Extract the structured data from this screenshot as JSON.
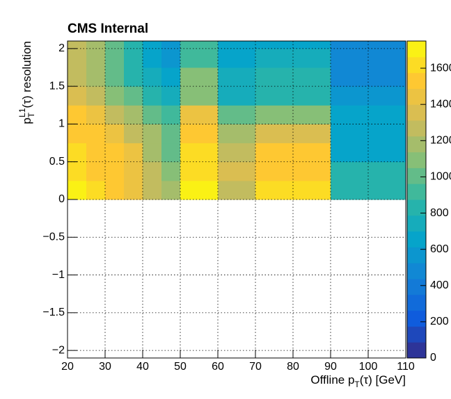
{
  "chart_data": {
    "type": "heatmap",
    "title": "CMS Internal",
    "x_label": [
      "Offline p",
      "T",
      "(τ) [GeV]"
    ],
    "y_label": [
      "p",
      "T",
      "L1",
      "(τ) resolution"
    ],
    "xbins": [
      20,
      25,
      30,
      35,
      40,
      45,
      50,
      60,
      70,
      80,
      90,
      100,
      110
    ],
    "ybins": [
      0,
      0.25,
      0.5,
      0.75,
      1,
      1.25,
      1.5,
      1.75,
      2,
      2.25
    ],
    "z": [
      [
        1700,
        1650,
        1550,
        1450,
        1300,
        1150,
        1720,
        1300,
        1650,
        1650,
        850,
        850
      ],
      [
        1650,
        1550,
        1500,
        1450,
        1300,
        1100,
        1650,
        1350,
        1500,
        1500,
        850,
        850
      ],
      [
        1600,
        1550,
        1500,
        1450,
        1200,
        1000,
        1650,
        1250,
        1500,
        1500,
        650,
        650
      ],
      [
        1550,
        1500,
        1450,
        1300,
        1150,
        1000,
        1550,
        1150,
        1350,
        1350,
        650,
        650
      ],
      [
        1550,
        1450,
        1300,
        1150,
        1000,
        900,
        1450,
        1000,
        1100,
        1100,
        650,
        650
      ],
      [
        1350,
        1300,
        1100,
        1000,
        850,
        750,
        1100,
        750,
        850,
        850,
        550,
        550
      ],
      [
        1300,
        1200,
        1000,
        850,
        700,
        650,
        1100,
        700,
        850,
        850,
        500,
        500
      ],
      [
        1300,
        1150,
        1000,
        850,
        650,
        600,
        900,
        650,
        700,
        700,
        450,
        500
      ],
      [
        1250,
        1150,
        1000,
        850,
        650,
        600,
        900,
        650,
        650,
        650,
        450,
        500
      ]
    ],
    "xlim": [
      20,
      110
    ],
    "xticks": [
      20,
      30,
      40,
      50,
      60,
      70,
      80,
      90,
      100,
      110
    ],
    "ylim": [
      -2.1,
      2.1
    ],
    "yticks": [
      {
        "value": -2,
        "label": "−2"
      },
      {
        "value": -1.5,
        "label": "−1.5"
      },
      {
        "value": -1,
        "label": "−1"
      },
      {
        "value": -0.5,
        "label": "−0.5"
      },
      0,
      0.5,
      1,
      1.5,
      2
    ],
    "zlim": [
      0,
      1750
    ],
    "zticks": [
      0,
      200,
      400,
      600,
      800,
      1000,
      1200,
      1400,
      1600
    ],
    "levels": 20,
    "colormap": [
      "#352a87",
      "#0f5cdd",
      "#1481d6",
      "#06a4ca",
      "#2eb7a4",
      "#87bf77",
      "#d1bb59",
      "#fec832",
      "#f9fb0e"
    ],
    "grid": true
  }
}
